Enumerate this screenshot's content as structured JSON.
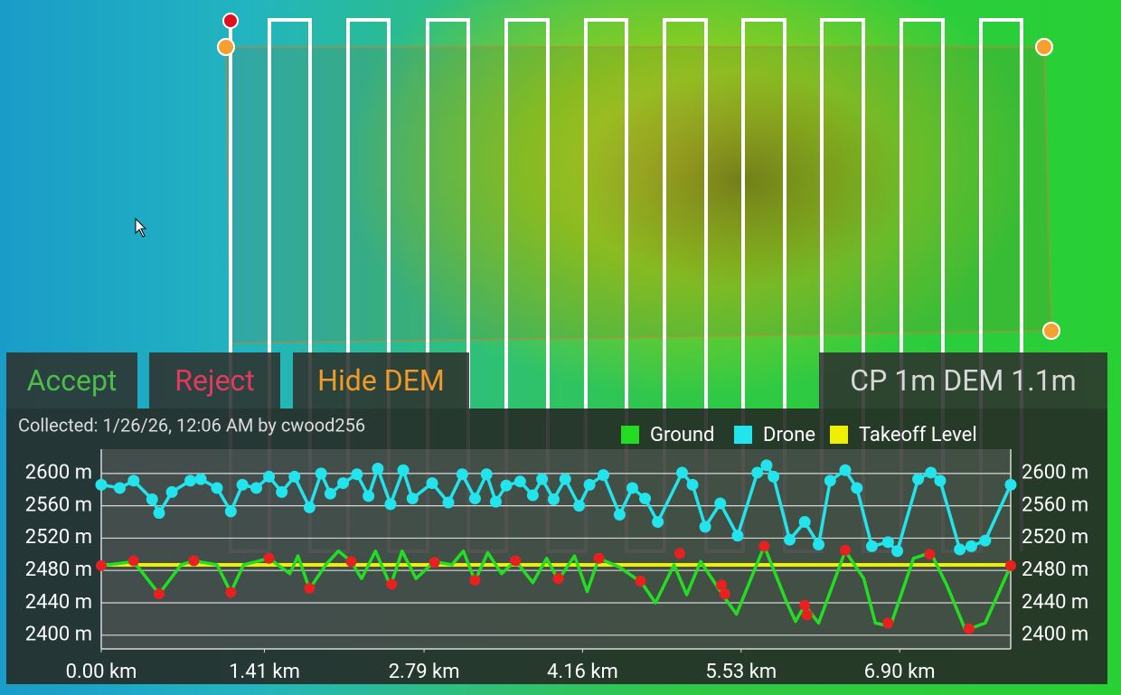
{
  "buttons": {
    "accept": "Accept",
    "reject": "Reject",
    "hide_dem": "Hide DEM"
  },
  "status": "CP 1m DEM 1.1m",
  "collected": "Collected: 1/26/26, 12:06 AM by cwood256",
  "chart_data": {
    "type": "line",
    "xlim": [
      0,
      7.86
    ],
    "xticks": [
      {
        "value": 0,
        "label": "0.00 km"
      },
      {
        "value": 1.41,
        "label": "1.41 km"
      },
      {
        "value": 2.79,
        "label": "2.79 km"
      },
      {
        "value": 4.16,
        "label": "4.16 km"
      },
      {
        "value": 5.53,
        "label": "5.53 km"
      },
      {
        "value": 6.9,
        "label": "6.90 km"
      }
    ],
    "ylim": [
      2383,
      2630
    ],
    "yticks": [
      {
        "value": 2400,
        "label": "2400 m"
      },
      {
        "value": 2440,
        "label": "2440 m"
      },
      {
        "value": 2480,
        "label": "2480 m"
      },
      {
        "value": 2520,
        "label": "2520 m"
      },
      {
        "value": 2560,
        "label": "2560 m"
      },
      {
        "value": 2600,
        "label": "2600 m"
      }
    ],
    "grid": true,
    "series": [
      {
        "name": "Ground",
        "color": "#22dd22",
        "x": [
          0,
          0.28,
          0.5,
          0.69,
          0.8,
          1.0,
          1.12,
          1.23,
          1.45,
          1.63,
          1.7,
          1.8,
          1.94,
          2.05,
          2.16,
          2.25,
          2.37,
          2.5,
          2.6,
          2.72,
          2.88,
          3.03,
          3.13,
          3.23,
          3.34,
          3.46,
          3.58,
          3.73,
          3.85,
          3.95,
          4.09,
          4.2,
          4.3,
          4.48,
          4.67,
          4.79,
          4.95,
          5.06,
          5.18,
          5.38,
          5.49,
          5.73,
          5.92,
          6.0,
          6.08,
          6.2,
          6.43,
          6.59,
          6.69,
          6.82,
          7.02,
          7.17,
          7.31,
          7.47,
          7.64,
          7.86
        ],
        "values": [
          2486,
          2491,
          2451,
          2487,
          2492,
          2487,
          2453,
          2487,
          2495,
          2476,
          2498,
          2457,
          2487,
          2504,
          2491,
          2470,
          2504,
          2461,
          2504,
          2470,
          2491,
          2487,
          2504,
          2467,
          2502,
          2476,
          2492,
          2465,
          2495,
          2468,
          2498,
          2454,
          2495,
          2484,
          2465,
          2440,
          2487,
          2450,
          2491,
          2448,
          2426,
          2510,
          2442,
          2417,
          2437,
          2415,
          2504,
          2470,
          2415,
          2411,
          2495,
          2502,
          2461,
          2406,
          2415,
          2486
        ]
      },
      {
        "name": "Drone",
        "color": "#22e4ec",
        "x": [
          0,
          0.16,
          0.28,
          0.44,
          0.5,
          0.61,
          0.77,
          0.86,
          1.0,
          1.12,
          1.22,
          1.34,
          1.45,
          1.56,
          1.67,
          1.8,
          1.9,
          1.98,
          2.09,
          2.21,
          2.31,
          2.39,
          2.5,
          2.61,
          2.69,
          2.86,
          3.0,
          3.12,
          3.23,
          3.33,
          3.41,
          3.5,
          3.62,
          3.73,
          3.81,
          3.91,
          4.01,
          4.13,
          4.22,
          4.34,
          4.48,
          4.59,
          4.7,
          4.81,
          5.02,
          5.11,
          5.22,
          5.35,
          5.5,
          5.67,
          5.75,
          5.81,
          5.95,
          6.08,
          6.2,
          6.3,
          6.43,
          6.53,
          6.66,
          6.8,
          6.88,
          7.06,
          7.17,
          7.25,
          7.42,
          7.52,
          7.64,
          7.86
        ],
        "values": [
          2586,
          2582,
          2591,
          2568,
          2551,
          2577,
          2591,
          2593,
          2582,
          2553,
          2586,
          2582,
          2596,
          2577,
          2596,
          2558,
          2600,
          2575,
          2588,
          2599,
          2572,
          2606,
          2562,
          2604,
          2569,
          2588,
          2564,
          2599,
          2569,
          2599,
          2565,
          2585,
          2590,
          2573,
          2593,
          2568,
          2593,
          2560,
          2586,
          2598,
          2549,
          2582,
          2569,
          2540,
          2601,
          2586,
          2534,
          2563,
          2523,
          2601,
          2610,
          2596,
          2518,
          2540,
          2512,
          2591,
          2604,
          2582,
          2510,
          2515,
          2504,
          2593,
          2601,
          2591,
          2506,
          2510,
          2517,
          2586
        ]
      },
      {
        "name": "Takeoff Level",
        "color": "#eef000",
        "x": [
          0,
          7.86
        ],
        "values": [
          2487,
          2487
        ]
      }
    ],
    "markers": {
      "color": "#e82020",
      "x": [
        0,
        0.28,
        0.5,
        0.8,
        1.12,
        1.45,
        1.8,
        2.16,
        2.51,
        2.88,
        3.23,
        3.58,
        3.95,
        4.3,
        4.66,
        5.0,
        5.36,
        5.39,
        5.73,
        6.08,
        6.1,
        6.43,
        6.8,
        7.16,
        7.5,
        7.86
      ],
      "values": [
        2486,
        2492,
        2451,
        2492,
        2453,
        2495,
        2458,
        2491,
        2463,
        2490,
        2468,
        2492,
        2470,
        2495,
        2467,
        2501,
        2462,
        2451,
        2510,
        2437,
        2425,
        2505,
        2415,
        2500,
        2408,
        2486
      ]
    }
  }
}
